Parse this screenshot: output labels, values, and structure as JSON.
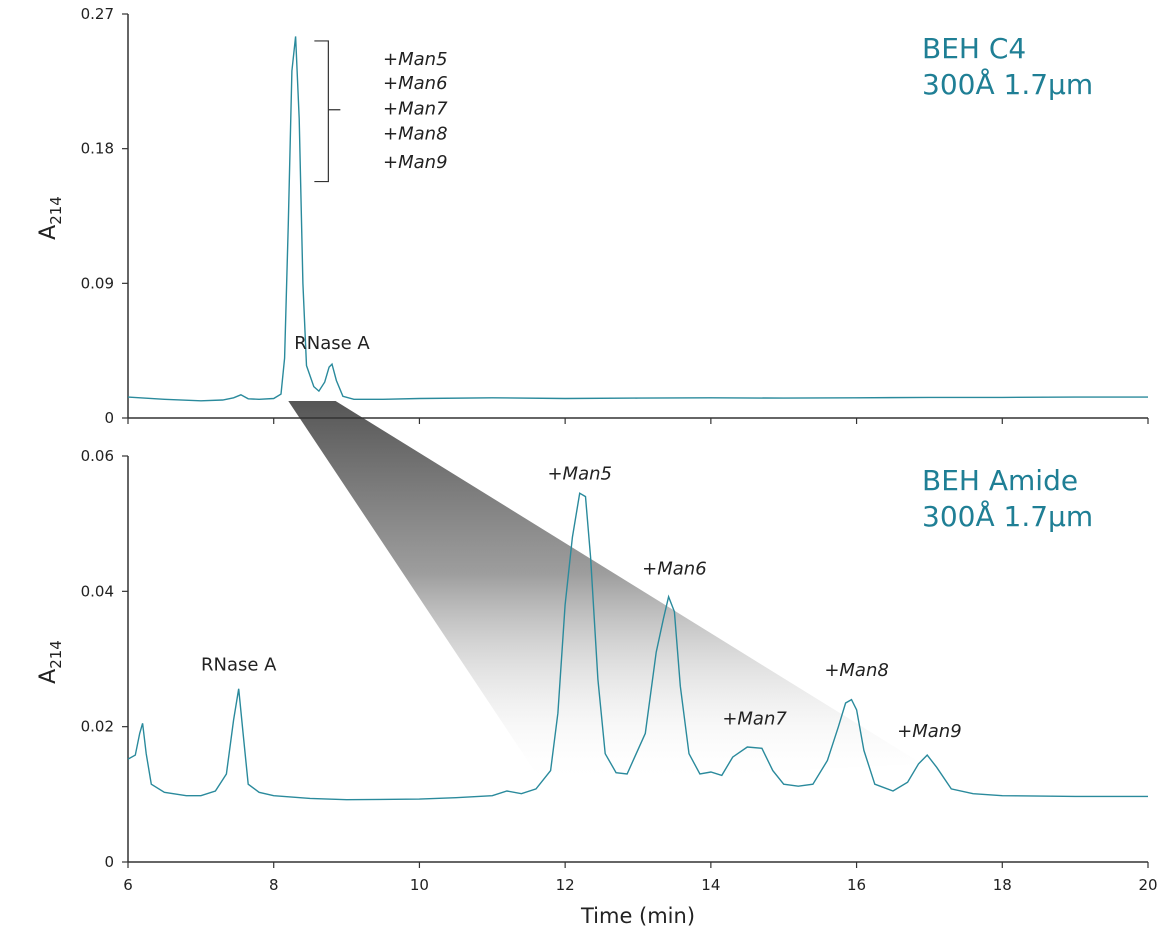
{
  "colors": {
    "trace": "#2a8a9c",
    "column_label": "#1f7f95",
    "axis": "#333333",
    "wedge_dark": "#555555"
  },
  "chart_data": [
    {
      "type": "line",
      "panel": "top",
      "column_label_lines": [
        "BEH C4",
        "300Å 1.7µm"
      ],
      "ylabel": "A",
      "ylabel_sub": "214",
      "xlim": [
        6,
        20
      ],
      "ylim": [
        0,
        0.27
      ],
      "yticks": [
        "0",
        "0.09",
        "0.18",
        "0.27"
      ],
      "ytick_values": [
        0,
        0.09,
        0.18,
        0.27
      ],
      "series": [
        {
          "x": [
            6.0,
            6.5,
            7.0,
            7.3,
            7.45,
            7.55,
            7.65,
            7.8,
            8.0,
            8.1,
            8.15,
            8.2,
            8.25,
            8.3,
            8.35,
            8.4,
            8.45,
            8.55,
            8.62,
            8.7,
            8.76,
            8.8,
            8.86,
            8.95,
            9.1,
            9.5,
            10,
            11,
            12,
            13,
            14,
            15,
            16,
            17,
            18,
            19,
            20
          ],
          "y": [
            0.014,
            0.0125,
            0.0115,
            0.012,
            0.0135,
            0.0155,
            0.0128,
            0.0125,
            0.013,
            0.016,
            0.04,
            0.13,
            0.232,
            0.255,
            0.2,
            0.09,
            0.035,
            0.021,
            0.018,
            0.024,
            0.034,
            0.036,
            0.025,
            0.0145,
            0.0125,
            0.0125,
            0.013,
            0.0135,
            0.013,
            0.0133,
            0.0135,
            0.0133,
            0.0135,
            0.0138,
            0.0138,
            0.014,
            0.014
          ]
        }
      ],
      "annotations": [
        {
          "text": "RNase A",
          "x": 8.8,
          "y": 0.046,
          "italic": false
        },
        {
          "text": "+Man5",
          "x": 9.5,
          "y": 0.236,
          "italic": true
        },
        {
          "text": "+Man6",
          "x": 9.5,
          "y": 0.22,
          "italic": true
        },
        {
          "text": "+Man7",
          "x": 9.5,
          "y": 0.203,
          "italic": true
        },
        {
          "text": "+Man8",
          "x": 9.5,
          "y": 0.186,
          "italic": true
        },
        {
          "text": "+Man9",
          "x": 9.5,
          "y": 0.167,
          "italic": true
        }
      ],
      "bracket": {
        "x": 8.75,
        "y_top": 0.252,
        "y_bottom": 0.158,
        "y_mid": 0.206
      }
    },
    {
      "type": "line",
      "panel": "bottom",
      "column_label_lines": [
        "BEH Amide",
        "300Å 1.7µm"
      ],
      "ylabel": "A",
      "ylabel_sub": "214",
      "xlabel": "Time (min)",
      "xlim": [
        6,
        20
      ],
      "ylim": [
        0,
        0.06
      ],
      "xticks": [
        "6",
        "8",
        "10",
        "12",
        "14",
        "16",
        "18",
        "20"
      ],
      "xtick_values": [
        6,
        8,
        10,
        12,
        14,
        16,
        18,
        20
      ],
      "yticks": [
        "0",
        "0.02",
        "0.04",
        "0.06"
      ],
      "ytick_values": [
        0,
        0.02,
        0.04,
        0.06
      ],
      "series": [
        {
          "x": [
            6.0,
            6.1,
            6.16,
            6.2,
            6.25,
            6.32,
            6.5,
            6.8,
            7.0,
            7.2,
            7.35,
            7.45,
            7.52,
            7.58,
            7.65,
            7.8,
            8.0,
            8.5,
            9.0,
            10.0,
            10.5,
            11.0,
            11.2,
            11.4,
            11.6,
            11.8,
            11.9,
            12.0,
            12.1,
            12.2,
            12.28,
            12.35,
            12.45,
            12.55,
            12.7,
            12.85,
            13.1,
            13.25,
            13.35,
            13.42,
            13.5,
            13.58,
            13.7,
            13.85,
            14.0,
            14.15,
            14.3,
            14.5,
            14.7,
            14.85,
            15.0,
            15.2,
            15.4,
            15.6,
            15.75,
            15.85,
            15.93,
            16.0,
            16.1,
            16.25,
            16.5,
            16.7,
            16.85,
            16.97,
            17.1,
            17.3,
            17.6,
            18.0,
            19.0,
            20.0
          ],
          "y": [
            0.0152,
            0.0158,
            0.019,
            0.0205,
            0.016,
            0.0115,
            0.0103,
            0.0098,
            0.0098,
            0.0105,
            0.013,
            0.021,
            0.0256,
            0.019,
            0.0115,
            0.0103,
            0.0098,
            0.0094,
            0.0092,
            0.0093,
            0.0095,
            0.0098,
            0.0105,
            0.0101,
            0.0108,
            0.0135,
            0.022,
            0.038,
            0.048,
            0.0545,
            0.054,
            0.045,
            0.027,
            0.016,
            0.0132,
            0.013,
            0.019,
            0.031,
            0.036,
            0.0392,
            0.037,
            0.026,
            0.016,
            0.013,
            0.0133,
            0.0128,
            0.0155,
            0.017,
            0.0168,
            0.0135,
            0.0115,
            0.0112,
            0.0115,
            0.015,
            0.02,
            0.0235,
            0.024,
            0.0225,
            0.0165,
            0.0115,
            0.0105,
            0.0118,
            0.0145,
            0.0158,
            0.014,
            0.0108,
            0.0101,
            0.0098,
            0.0097,
            0.0097
          ]
        }
      ],
      "annotations": [
        {
          "text": "RNase A",
          "x": 7.52,
          "y": 0.0283,
          "italic": false
        },
        {
          "text": "+Man5",
          "x": 12.2,
          "y": 0.0565,
          "italic": true
        },
        {
          "text": "+Man6",
          "x": 13.5,
          "y": 0.0425,
          "italic": true
        },
        {
          "text": "+Man7",
          "x": 14.6,
          "y": 0.0203,
          "italic": true
        },
        {
          "text": "+Man8",
          "x": 16.0,
          "y": 0.0275,
          "italic": true
        },
        {
          "text": "+Man9",
          "x": 17.0,
          "y": 0.0185,
          "italic": true
        }
      ]
    }
  ]
}
